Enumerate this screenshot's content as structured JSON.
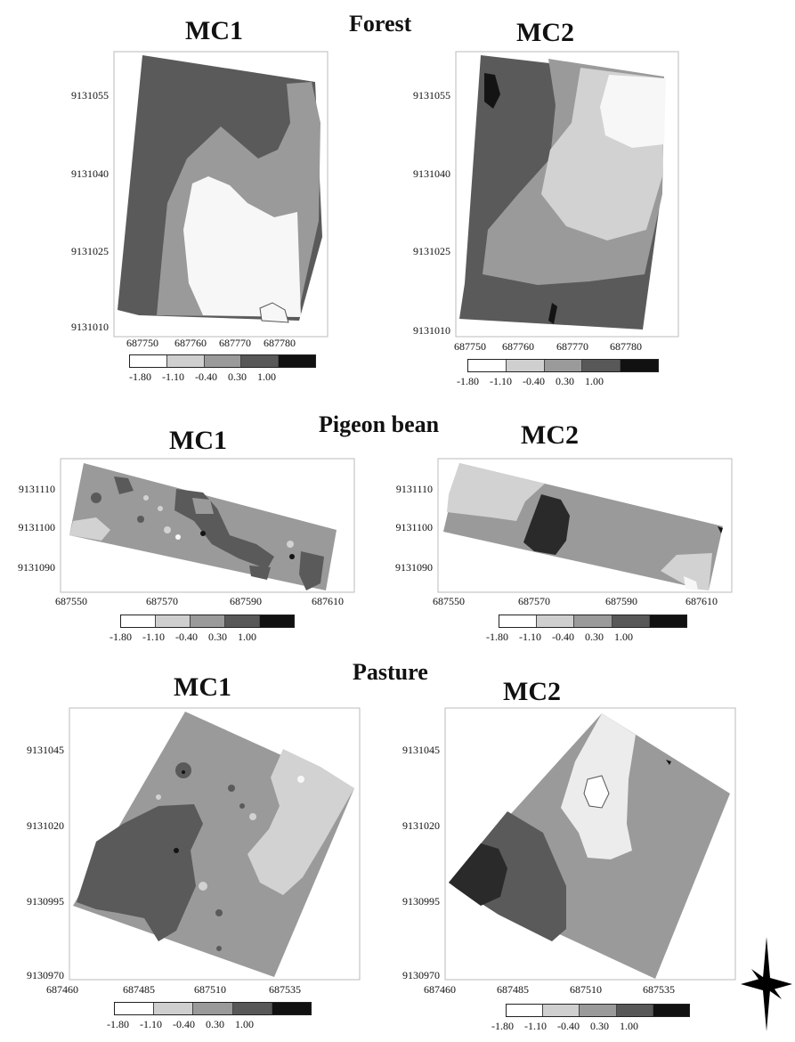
{
  "sections": {
    "forest": "Forest",
    "pigeon_bean": "Pigeon bean",
    "pasture": "Pasture"
  },
  "panel_titles": {
    "forest_mc1": "MC1",
    "forest_mc2": "MC2",
    "pigeon_mc1": "MC1",
    "pigeon_mc2": "MC2",
    "pasture_mc1": "MC1",
    "pasture_mc2": "MC2"
  },
  "axes": {
    "forest_y": [
      "9131055",
      "9131040",
      "9131025",
      "9131010"
    ],
    "forest_x": [
      "687750",
      "687760",
      "687770",
      "687780"
    ],
    "pigeon_y": [
      "9131110",
      "9131100",
      "9131090"
    ],
    "pigeon_x": [
      "687550",
      "687570",
      "687590",
      "687610"
    ],
    "pasture_y": [
      "9131045",
      "9131020",
      "9130995",
      "9130970"
    ],
    "pasture_x": [
      "687460",
      "687485",
      "687510",
      "687535"
    ]
  },
  "legend": {
    "labels": [
      "-1.80",
      "-1.10",
      "-0.40",
      "0.30",
      "1.00"
    ],
    "colors": [
      "#ffffff",
      "#cfcfcf",
      "#9a9a9a",
      "#585858",
      "#111111"
    ]
  },
  "colors": {
    "white": "#f7f7f7",
    "light": "#d2d2d2",
    "mid": "#9a9a9a",
    "dark": "#5a5a5a",
    "black": "#141414"
  }
}
